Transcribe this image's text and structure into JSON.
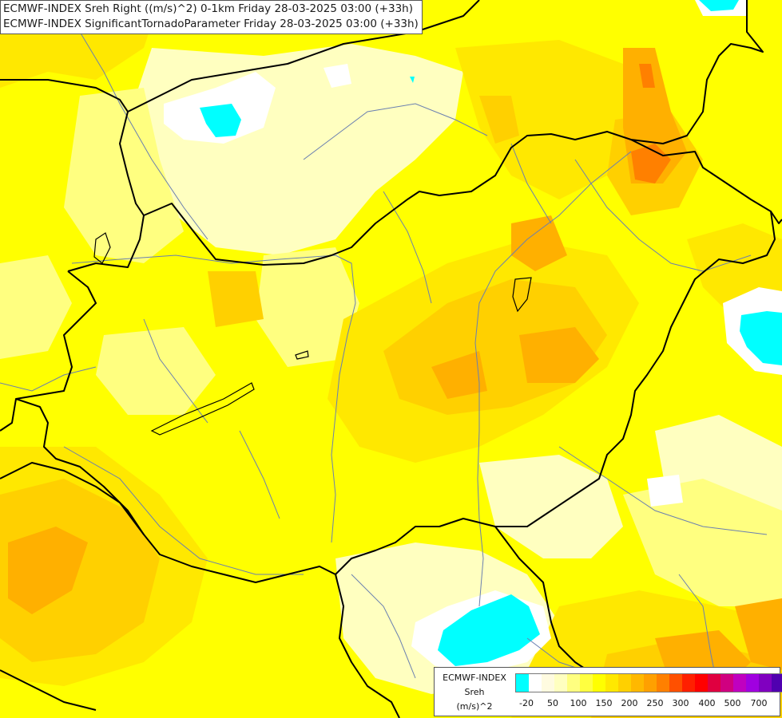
{
  "title": {
    "line1": "ECMWF-INDEX Sreh Right ((m/s)^2) 0-1km Friday 28-03-2025 03:00 (+33h)",
    "line2": "ECMWF-INDEX SignificantTornadoParameter Friday 28-03-2025 03:00 (+33h)"
  },
  "legend": {
    "source": "ECMWF-INDEX",
    "variable": "Sreh",
    "unit": "(m/s)^2",
    "colors": [
      "#00ffff",
      "#ffffff",
      "#fffbe0",
      "#ffffc0",
      "#ffff80",
      "#ffff40",
      "#ffff00",
      "#ffe800",
      "#ffd000",
      "#ffb800",
      "#ffa000",
      "#ff8000",
      "#ff5000",
      "#ff2000",
      "#ff0000",
      "#e00040",
      "#d00080",
      "#c000c0",
      "#a000e0",
      "#8000c0",
      "#5000b0",
      "#2000a0"
    ],
    "ticks": [
      "-20",
      "50",
      "100",
      "150",
      "200",
      "250",
      "300",
      "400",
      "500",
      "700"
    ]
  },
  "map": {
    "colors": {
      "bg": "#ffff00",
      "light_yellow": "#ffff80",
      "pale_yellow": "#ffffc0",
      "gold": "#ffe800",
      "orange_light": "#ffd000",
      "orange": "#ffb000",
      "orange_dark": "#ff8000",
      "cyan": "#00ffff",
      "white": "#ffffff",
      "border": "#000000",
      "river": "#6a7fb0"
    }
  }
}
